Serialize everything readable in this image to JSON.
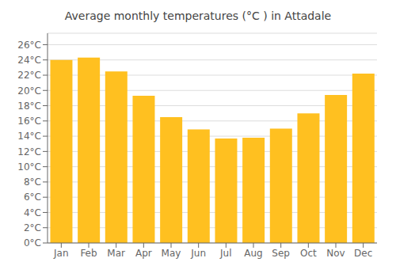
{
  "chart_data": {
    "type": "bar",
    "title": "Average monthly temperatures (°C ) in Attadale",
    "categories": [
      "Jan",
      "Feb",
      "Mar",
      "Apr",
      "May",
      "Jun",
      "Jul",
      "Aug",
      "Sep",
      "Oct",
      "Nov",
      "Dec"
    ],
    "values": [
      24.0,
      24.3,
      22.5,
      19.3,
      16.5,
      14.9,
      13.7,
      13.8,
      15.0,
      17.0,
      19.4,
      22.2
    ],
    "color": "#FFC020",
    "ylim": [
      0,
      27.5
    ],
    "yticks": [
      {
        "value": 0,
        "label": "0°C"
      },
      {
        "value": 2,
        "label": "2°C"
      },
      {
        "value": 4,
        "label": "4°C"
      },
      {
        "value": 6,
        "label": "6°C"
      },
      {
        "value": 8,
        "label": "8°C"
      },
      {
        "value": 10,
        "label": "10°C"
      },
      {
        "value": 12,
        "label": "12°C"
      },
      {
        "value": 14,
        "label": "14°C"
      },
      {
        "value": 16,
        "label": "16°C"
      },
      {
        "value": 18,
        "label": "18°C"
      },
      {
        "value": 20,
        "label": "20°C"
      },
      {
        "value": 22,
        "label": "22°C"
      },
      {
        "value": 24,
        "label": "24°C"
      },
      {
        "value": 26,
        "label": "26°C"
      }
    ],
    "grid": true
  }
}
